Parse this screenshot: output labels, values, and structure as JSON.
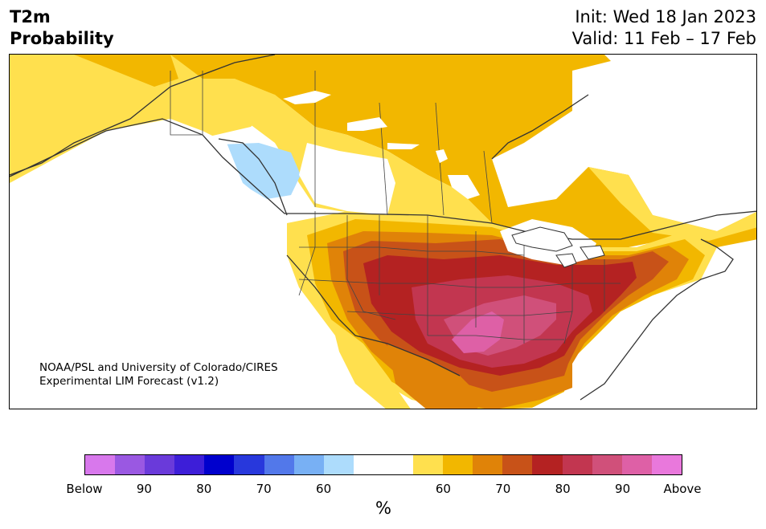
{
  "title": {
    "variable": "T2m",
    "subtitle": "Probability",
    "init": "Init: Wed 18 Jan 2023",
    "valid": "Valid: 11 Feb – 17 Feb"
  },
  "credit": {
    "line1": "NOAA/PSL and University of Colorado/CIRES",
    "line2": "Experimental LIM Forecast (v1.2)"
  },
  "colorbar": {
    "colors": [
      "#d878ec",
      "#9a58e2",
      "#6a3ada",
      "#3d1ed8",
      "#0000cd",
      "#2838dc",
      "#5278ea",
      "#78b0f4",
      "#addcfc",
      "#ffffff",
      "#ffffff",
      "#ffe04e",
      "#f2b700",
      "#e08308",
      "#c85218",
      "#b42222",
      "#c23650",
      "#d0507a",
      "#de60a6",
      "#e978dc"
    ],
    "tick_labels": [
      "Below",
      "90",
      "80",
      "70",
      "60",
      "60",
      "70",
      "80",
      "90",
      "Above"
    ],
    "unit": "%"
  },
  "map": {
    "category_colors": {
      "below_60": "#addcfc",
      "near_normal": "#ffffff",
      "above_60": "#ffe04e",
      "above_65": "#f2b700",
      "above_70": "#e08308",
      "above_75": "#c85218",
      "above_80": "#b42222",
      "above_85": "#c23650",
      "above_90": "#d0507a",
      "above_95": "#de60a6"
    }
  }
}
